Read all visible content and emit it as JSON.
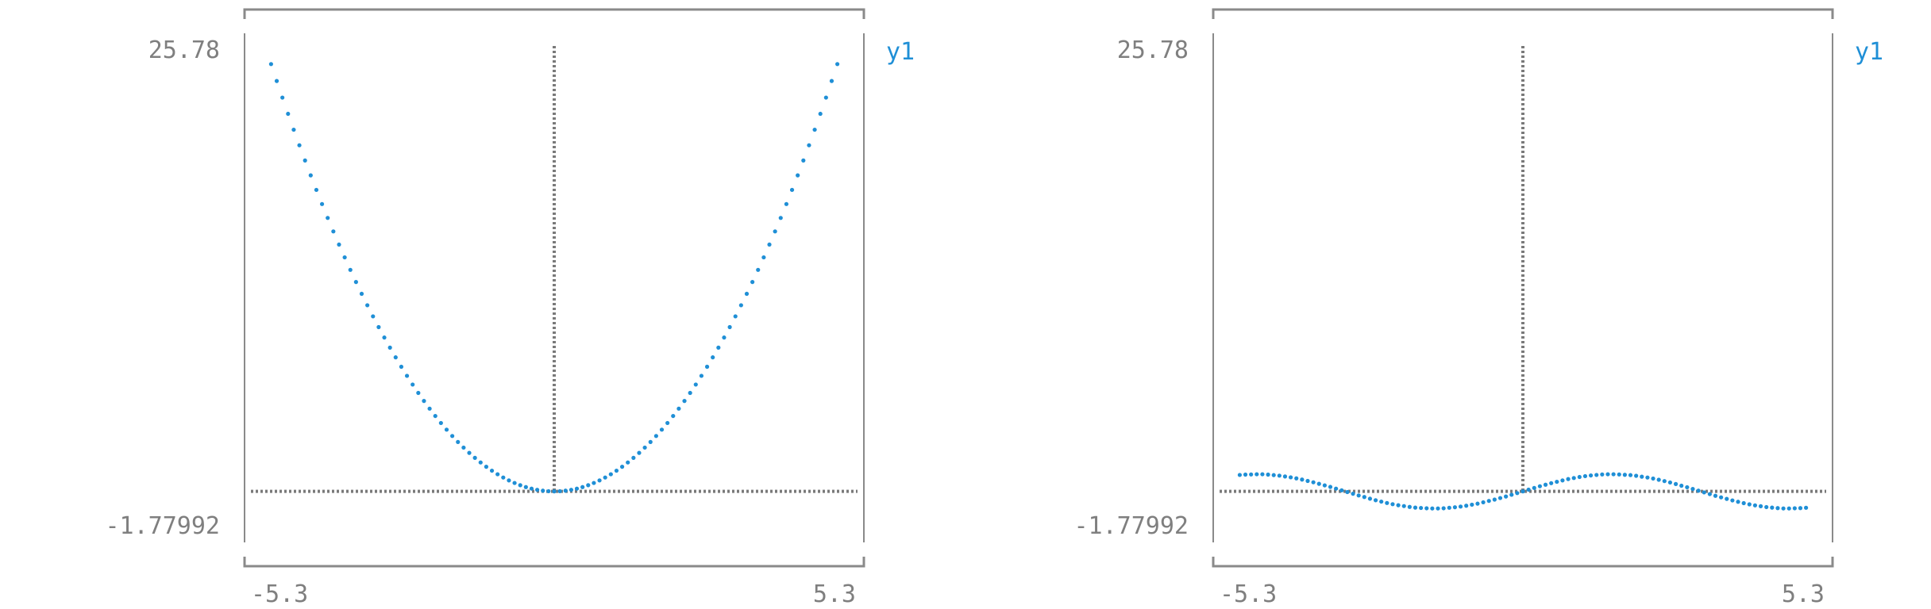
{
  "chart_data": [
    {
      "type": "scatter",
      "title": "",
      "xlabel": "",
      "ylabel": "",
      "xlim": [
        -5.3,
        5.3
      ],
      "ylim": [
        -1.77992,
        25.78
      ],
      "x_ticks": [
        "-5.3",
        "5.3"
      ],
      "y_ticks": [
        "25.78",
        "-1.77992"
      ],
      "grid": false,
      "legend_position": "top-right",
      "series": [
        {
          "name": "y1",
          "color": "#1f8fd6",
          "x": [
            -5.0,
            -4.9,
            -4.8,
            -4.7,
            -4.6,
            -4.5,
            -4.4,
            -4.3,
            -4.2,
            -4.1,
            -4.0,
            -3.9,
            -3.8,
            -3.7,
            -3.6,
            -3.5,
            -3.4,
            -3.3,
            -3.2,
            -3.1,
            -3.0,
            -2.9,
            -2.8,
            -2.7,
            -2.6,
            -2.5,
            -2.4,
            -2.3,
            -2.2,
            -2.1,
            -2.0,
            -1.9,
            -1.8,
            -1.7,
            -1.6,
            -1.5,
            -1.4,
            -1.3,
            -1.2,
            -1.1,
            -1.0,
            -0.9,
            -0.8,
            -0.7,
            -0.6,
            -0.5,
            -0.4,
            -0.3,
            -0.2,
            -0.1,
            0.0,
            0.1,
            0.2,
            0.3,
            0.4,
            0.5,
            0.6,
            0.7,
            0.8,
            0.9,
            1.0,
            1.1,
            1.2,
            1.3,
            1.4,
            1.5,
            1.6,
            1.7,
            1.8,
            1.9,
            2.0,
            2.1,
            2.2,
            2.3,
            2.4,
            2.5,
            2.6,
            2.7,
            2.8,
            2.9,
            3.0,
            3.1,
            3.2,
            3.3,
            3.4,
            3.5,
            3.6,
            3.7,
            3.8,
            3.9,
            4.0,
            4.1,
            4.2,
            4.3,
            4.4,
            4.5,
            4.6,
            4.7,
            4.8,
            4.9,
            5.0
          ],
          "y": [
            25.0,
            24.01,
            23.04,
            22.09,
            21.16,
            20.25,
            19.36,
            18.49,
            17.64,
            16.81,
            16.0,
            15.21,
            14.44,
            13.69,
            12.96,
            12.25,
            11.56,
            10.89,
            10.24,
            9.61,
            9.0,
            8.41,
            7.84,
            7.29,
            6.76,
            6.25,
            5.76,
            5.29,
            4.84,
            4.41,
            4.0,
            3.61,
            3.24,
            2.89,
            2.56,
            2.25,
            1.96,
            1.69,
            1.44,
            1.21,
            1.0,
            0.81,
            0.64,
            0.49,
            0.36,
            0.25,
            0.16,
            0.09,
            0.04,
            0.01,
            0.0,
            0.01,
            0.04,
            0.09,
            0.16,
            0.25,
            0.36,
            0.49,
            0.64,
            0.81,
            1.0,
            1.21,
            1.44,
            1.69,
            1.96,
            2.25,
            2.56,
            2.89,
            3.24,
            3.61,
            4.0,
            4.41,
            4.84,
            5.29,
            5.76,
            6.25,
            6.76,
            7.29,
            7.84,
            8.41,
            9.0,
            9.61,
            10.24,
            10.89,
            11.56,
            12.25,
            12.96,
            13.69,
            14.44,
            15.21,
            16.0,
            16.81,
            17.64,
            18.49,
            19.36,
            20.25,
            21.16,
            22.09,
            23.04,
            24.01,
            25.0
          ]
        }
      ]
    },
    {
      "type": "scatter",
      "title": "",
      "xlabel": "",
      "ylabel": "",
      "xlim": [
        -5.3,
        5.3
      ],
      "ylim": [
        -1.77992,
        25.78
      ],
      "x_ticks": [
        "-5.3",
        "5.3"
      ],
      "y_ticks": [
        "25.78",
        "-1.77992"
      ],
      "grid": false,
      "legend_position": "top-right",
      "series": [
        {
          "name": "y1",
          "color": "#1f8fd6",
          "x": [
            -5.0,
            -4.9,
            -4.8,
            -4.7,
            -4.6,
            -4.5,
            -4.4,
            -4.3,
            -4.2,
            -4.1,
            -4.0,
            -3.9,
            -3.8,
            -3.7,
            -3.6,
            -3.5,
            -3.4,
            -3.3,
            -3.2,
            -3.1,
            -3.0,
            -2.9,
            -2.8,
            -2.7,
            -2.6,
            -2.5,
            -2.4,
            -2.3,
            -2.2,
            -2.1,
            -2.0,
            -1.9,
            -1.8,
            -1.7,
            -1.6,
            -1.5,
            -1.4,
            -1.3,
            -1.2,
            -1.1,
            -1.0,
            -0.9,
            -0.8,
            -0.7,
            -0.6,
            -0.5,
            -0.4,
            -0.3,
            -0.2,
            -0.1,
            0.0,
            0.1,
            0.2,
            0.3,
            0.4,
            0.5,
            0.6,
            0.7,
            0.8,
            0.9,
            1.0,
            1.1,
            1.2,
            1.3,
            1.4,
            1.5,
            1.6,
            1.7,
            1.8,
            1.9,
            2.0,
            2.1,
            2.2,
            2.3,
            2.4,
            2.5,
            2.6,
            2.7,
            2.8,
            2.9,
            3.0,
            3.1,
            3.2,
            3.3,
            3.4,
            3.5,
            3.6,
            3.7,
            3.8,
            3.9,
            4.0,
            4.1,
            4.2,
            4.3,
            4.4,
            4.5,
            4.6,
            4.7,
            4.8,
            4.9,
            5.0
          ],
          "y": [
            0.96,
            0.98,
            0.99,
            1.0,
            1.0,
            0.98,
            0.95,
            0.92,
            0.87,
            0.82,
            0.76,
            0.69,
            0.61,
            0.53,
            0.44,
            0.35,
            0.26,
            0.16,
            0.06,
            -0.04,
            -0.14,
            -0.24,
            -0.33,
            -0.43,
            -0.52,
            -0.6,
            -0.68,
            -0.75,
            -0.81,
            -0.86,
            -0.91,
            -0.95,
            -0.97,
            -0.99,
            -1.0,
            -1.0,
            -0.99,
            -0.96,
            -0.93,
            -0.89,
            -0.84,
            -0.78,
            -0.72,
            -0.64,
            -0.56,
            -0.48,
            -0.39,
            -0.3,
            -0.2,
            -0.1,
            0.0,
            0.1,
            0.2,
            0.3,
            0.39,
            0.48,
            0.56,
            0.64,
            0.72,
            0.78,
            0.84,
            0.89,
            0.93,
            0.96,
            0.99,
            1.0,
            1.0,
            0.99,
            0.97,
            0.95,
            0.91,
            0.86,
            0.81,
            0.75,
            0.68,
            0.6,
            0.52,
            0.43,
            0.33,
            0.24,
            0.14,
            0.04,
            -0.06,
            -0.16,
            -0.26,
            -0.35,
            -0.44,
            -0.53,
            -0.61,
            -0.69,
            -0.76,
            -0.82,
            -0.87,
            -0.92,
            -0.95,
            -0.98,
            -1.0,
            -1.0,
            -0.99,
            -0.98,
            -0.96
          ]
        }
      ]
    }
  ]
}
